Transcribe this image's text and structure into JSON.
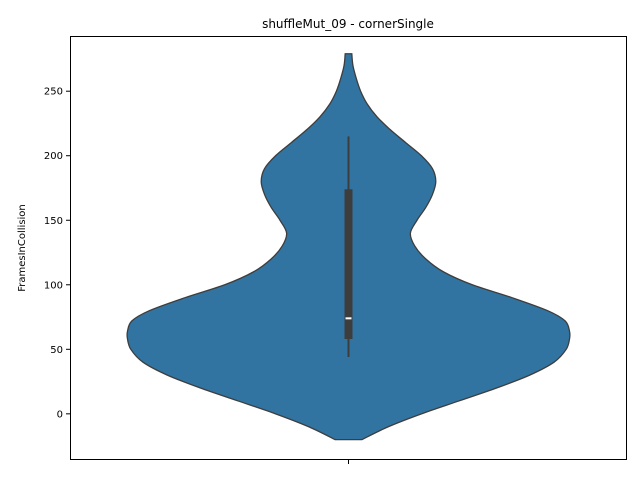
{
  "chart_data": {
    "type": "violin",
    "title": "shuffleMut_09 - cornerSingle",
    "xlabel": "",
    "ylabel": "FramesInCollision",
    "ylim": [
      -35,
      292
    ],
    "yticks": [
      0,
      50,
      100,
      150,
      200,
      250
    ],
    "ytick_labels": [
      "0",
      "50",
      "100",
      "150",
      "200",
      "250"
    ],
    "grid": false,
    "violin": {
      "color": "#3274a1",
      "edge_color": "#3d3d3d",
      "kde_range": [
        -20,
        279
      ],
      "density_profile": [
        {
          "y": -20,
          "half_width": 0.06
        },
        {
          "y": -10,
          "half_width": 0.18
        },
        {
          "y": 0,
          "half_width": 0.33
        },
        {
          "y": 10,
          "half_width": 0.5
        },
        {
          "y": 20,
          "half_width": 0.67
        },
        {
          "y": 30,
          "half_width": 0.82
        },
        {
          "y": 40,
          "half_width": 0.93
        },
        {
          "y": 50,
          "half_width": 0.985
        },
        {
          "y": 58,
          "half_width": 1.0
        },
        {
          "y": 64,
          "half_width": 1.0
        },
        {
          "y": 72,
          "half_width": 0.98
        },
        {
          "y": 80,
          "half_width": 0.9
        },
        {
          "y": 90,
          "half_width": 0.74
        },
        {
          "y": 100,
          "half_width": 0.56
        },
        {
          "y": 110,
          "half_width": 0.43
        },
        {
          "y": 120,
          "half_width": 0.35
        },
        {
          "y": 130,
          "half_width": 0.3
        },
        {
          "y": 140,
          "half_width": 0.28
        },
        {
          "y": 150,
          "half_width": 0.31
        },
        {
          "y": 160,
          "half_width": 0.35
        },
        {
          "y": 170,
          "half_width": 0.38
        },
        {
          "y": 180,
          "half_width": 0.395
        },
        {
          "y": 190,
          "half_width": 0.38
        },
        {
          "y": 200,
          "half_width": 0.33
        },
        {
          "y": 210,
          "half_width": 0.26
        },
        {
          "y": 220,
          "half_width": 0.19
        },
        {
          "y": 230,
          "half_width": 0.13
        },
        {
          "y": 240,
          "half_width": 0.085
        },
        {
          "y": 250,
          "half_width": 0.055
        },
        {
          "y": 260,
          "half_width": 0.035
        },
        {
          "y": 270,
          "half_width": 0.02
        },
        {
          "y": 279,
          "half_width": 0.015
        }
      ],
      "whisker_low": 44,
      "q1": 58,
      "median": 74,
      "q3": 174,
      "whisker_high": 215
    }
  }
}
